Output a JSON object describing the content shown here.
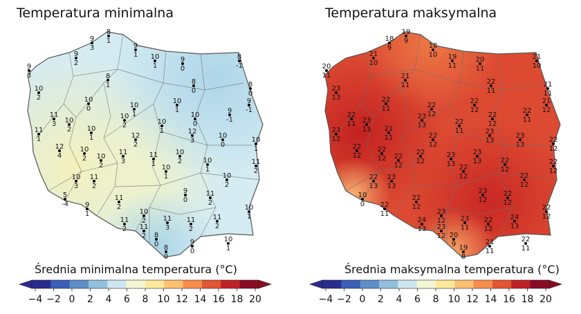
{
  "panels": [
    {
      "title": "Temperatura minimalna",
      "colorbar_label": "Średnia minimalna temperatura (°C)",
      "stations": [
        {
          "a": "8",
          "b": "1"
        },
        {
          "a": "9",
          "b": "3"
        },
        {
          "a": "9",
          "b": "1"
        },
        {
          "a": "9",
          "b": "2"
        },
        {
          "a": "10",
          "b": "1"
        },
        {
          "a": "9",
          "b": "0"
        },
        {
          "a": "8",
          "b": "-1"
        },
        {
          "a": "9",
          "b": "3"
        },
        {
          "a": "8",
          "b": "1"
        },
        {
          "a": "8",
          "b": "0"
        },
        {
          "a": "8",
          "b": "0"
        },
        {
          "a": "10",
          "b": "2"
        },
        {
          "a": "10",
          "b": "0"
        },
        {
          "a": "10",
          "b": "1"
        },
        {
          "a": "9",
          "b": "-1"
        },
        {
          "a": "9",
          "b": "-1"
        },
        {
          "a": "11",
          "b": "3"
        },
        {
          "a": "10",
          "b": "2"
        },
        {
          "a": "10",
          "b": "2"
        },
        {
          "a": "10",
          "b": "1"
        },
        {
          "a": "10",
          "b": "0"
        },
        {
          "a": "11",
          "b": "1"
        },
        {
          "a": "10",
          "b": "1"
        },
        {
          "a": "10",
          "b": "1"
        },
        {
          "a": "12",
          "b": "3"
        },
        {
          "a": "10",
          "b": "0"
        },
        {
          "a": "12",
          "b": "4"
        },
        {
          "a": "10",
          "b": "2"
        },
        {
          "a": "10",
          "b": "2"
        },
        {
          "a": "11",
          "b": "3"
        },
        {
          "a": "11",
          "b": "1"
        },
        {
          "a": "12",
          "b": "2"
        },
        {
          "a": "10",
          "b": "2"
        },
        {
          "a": "10",
          "b": "1"
        },
        {
          "a": "10",
          "b": "1"
        },
        {
          "a": "11",
          "b": "2"
        },
        {
          "a": "10",
          "b": "3"
        },
        {
          "a": "11",
          "b": "2"
        },
        {
          "a": "10",
          "b": "1"
        },
        {
          "a": "10",
          "b": "2"
        },
        {
          "a": "5",
          "b": "-4"
        },
        {
          "a": "11",
          "b": "2"
        },
        {
          "a": "9",
          "b": "0"
        },
        {
          "a": "11",
          "b": "2"
        },
        {
          "a": "9",
          "b": "1"
        },
        {
          "a": "10",
          "b": "1"
        },
        {
          "a": "10",
          "b": "2"
        },
        {
          "a": "11",
          "b": "3"
        },
        {
          "a": "11",
          "b": "2"
        },
        {
          "a": "11",
          "b": "2"
        },
        {
          "a": "11",
          "b": "2"
        },
        {
          "a": "11",
          "b": "2"
        },
        {
          "a": "8",
          "b": "0"
        },
        {
          "a": "8",
          "b": "0"
        },
        {
          "a": "9",
          "b": "0"
        },
        {
          "a": "10",
          "b": "1"
        }
      ]
    },
    {
      "title": "Temperatura maksymalna",
      "colorbar_label": "Średnia maksymalna temperatura (°C)",
      "stations": [
        {
          "a": "19",
          "b": "9"
        },
        {
          "a": "18",
          "b": "9"
        },
        {
          "a": "18",
          "b": "10"
        },
        {
          "a": "21",
          "b": "10"
        },
        {
          "a": "19",
          "b": "11"
        },
        {
          "a": "20",
          "b": "11"
        },
        {
          "a": "21",
          "b": "10"
        },
        {
          "a": "20",
          "b": "11"
        },
        {
          "a": "21",
          "b": "11"
        },
        {
          "a": "22",
          "b": "11"
        },
        {
          "a": "21",
          "b": "11"
        },
        {
          "a": "23",
          "b": "13"
        },
        {
          "a": "22",
          "b": "11"
        },
        {
          "a": "22",
          "b": "12"
        },
        {
          "a": "21",
          "b": "12"
        },
        {
          "a": "22",
          "b": "11"
        },
        {
          "a": "22",
          "b": "11"
        },
        {
          "a": "23",
          "b": "13"
        },
        {
          "a": "23",
          "b": "13"
        },
        {
          "a": "22",
          "b": "12"
        },
        {
          "a": "22",
          "b": "12"
        },
        {
          "a": "23",
          "b": "12"
        },
        {
          "a": "21",
          "b": "11"
        },
        {
          "a": "22",
          "b": "11"
        },
        {
          "a": "23",
          "b": "13"
        },
        {
          "a": "23",
          "b": "13"
        },
        {
          "a": "22",
          "b": "12"
        },
        {
          "a": "22",
          "b": "12"
        },
        {
          "a": "22",
          "b": "12"
        },
        {
          "a": "22",
          "b": "12"
        },
        {
          "a": "23",
          "b": "13"
        },
        {
          "a": "22",
          "b": "12"
        },
        {
          "a": "23",
          "b": "13"
        },
        {
          "a": "22",
          "b": "12"
        },
        {
          "a": "22",
          "b": "12"
        },
        {
          "a": "22",
          "b": "12"
        },
        {
          "a": "22",
          "b": "13"
        },
        {
          "a": "23",
          "b": "13"
        },
        {
          "a": "22",
          "b": "12"
        },
        {
          "a": "22",
          "b": "12"
        },
        {
          "a": "10",
          "b": "0"
        },
        {
          "a": "22",
          "b": "12"
        },
        {
          "a": "23",
          "b": "12"
        },
        {
          "a": "22",
          "b": "12"
        },
        {
          "a": "22",
          "b": "11"
        },
        {
          "a": "22",
          "b": "12"
        },
        {
          "a": "23",
          "b": "12"
        },
        {
          "a": "23",
          "b": "11"
        },
        {
          "a": "22",
          "b": "12"
        },
        {
          "a": "24",
          "b": "13"
        },
        {
          "a": "24",
          "b": "13"
        },
        {
          "a": "23",
          "b": "12"
        },
        {
          "a": "20",
          "b": "9"
        },
        {
          "a": "19",
          "b": "8"
        },
        {
          "a": "21",
          "b": "11"
        },
        {
          "a": "22",
          "b": "11"
        }
      ]
    }
  ],
  "colorbar": {
    "ticks": [
      "−4",
      "−2",
      "0",
      "2",
      "4",
      "6",
      "8",
      "10",
      "12",
      "14",
      "16",
      "18",
      "20"
    ],
    "extend": "both",
    "colormap": [
      "#2b2b8e",
      "#3b5fb6",
      "#5a8fc8",
      "#91c0dd",
      "#cde6ef",
      "#f3f6d2",
      "#fde89a",
      "#fdc070",
      "#f78c4d",
      "#e45533",
      "#c02027",
      "#8a0b24"
    ]
  },
  "map_colors": {
    "min_base": "#d4ebf2",
    "min_warm": "#f4f5c7",
    "max_base": "#dc4a32",
    "max_hot": "#c8201f",
    "max_cool": "#f08a52"
  }
}
